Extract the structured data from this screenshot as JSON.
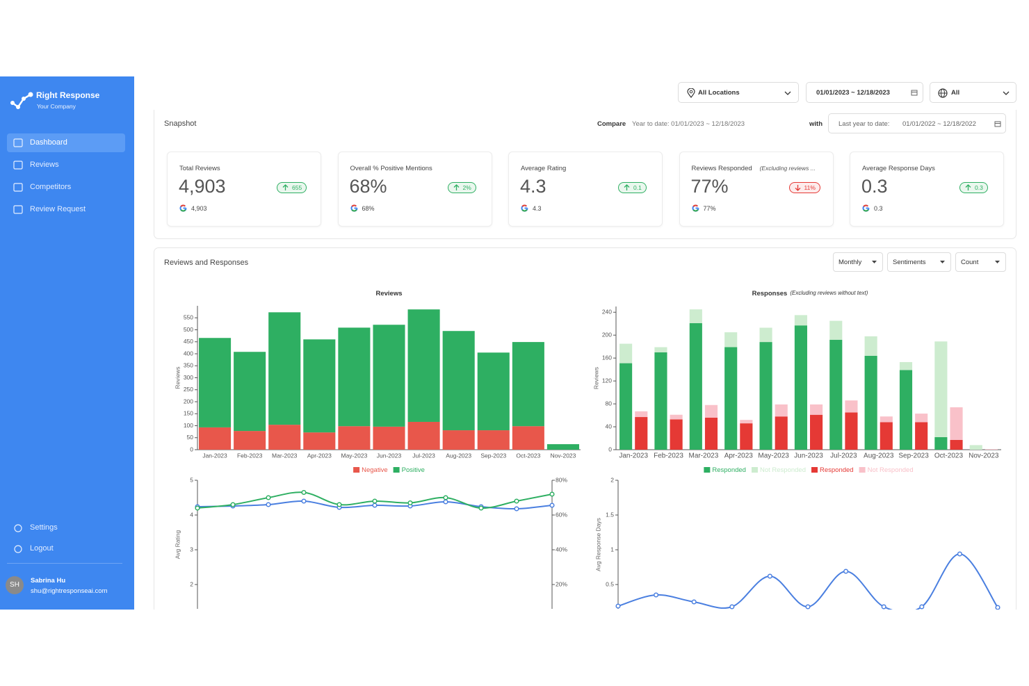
{
  "sidebar": {
    "brand": "Right Response",
    "company": "Your Company",
    "nav": [
      "Dashboard",
      "Reviews",
      "Competitors",
      "Review Request"
    ],
    "active": 0,
    "footer_nav": [
      "Settings",
      "Logout"
    ],
    "user": {
      "initials": "SH",
      "name": "Sabrina Hu",
      "email": "shu@rightresponseai.com"
    }
  },
  "filters": {
    "location": "All Locations",
    "date_range": "01/01/2023 ~ 12/18/2023",
    "source": "All"
  },
  "snapshot": {
    "title": "Snapshot",
    "compare_label": "Compare",
    "compare_value": "Year to date: 01/01/2023 ~ 12/18/2023",
    "with_label": "with",
    "with_prefix": "Last year to date:",
    "with_value": "01/01/2022 ~ 12/18/2022",
    "cards": [
      {
        "label": "Total Reviews",
        "value": "4,903",
        "change": "655",
        "direction": "up",
        "google": "4,903"
      },
      {
        "label": "Overall % Positive Mentions",
        "value": "68%",
        "change": "2%",
        "direction": "up",
        "google": "68%"
      },
      {
        "label": "Average Rating",
        "value": "4.3",
        "change": "0.1",
        "direction": "up",
        "google": "4.3"
      },
      {
        "label": "Reviews Responded",
        "note": "(Excluding reviews ...",
        "value": "77%",
        "change": "11%",
        "direction": "down",
        "google": "77%"
      },
      {
        "label": "Average Response Days",
        "value": "0.3",
        "change": "0.3",
        "direction": "up",
        "google": "0.3"
      }
    ]
  },
  "reviews_panel": {
    "title": "Reviews and Responses",
    "controls": [
      "Monthly",
      "Sentiments",
      "Count"
    ]
  },
  "chart_data": [
    {
      "type": "bar",
      "title": "Reviews",
      "ylabel": "Reviews",
      "categories": [
        "Jan-2023",
        "Feb-2023",
        "Mar-2023",
        "Apr-2023",
        "May-2023",
        "Jun-2023",
        "Jul-2023",
        "Aug-2023",
        "Sep-2023",
        "Oct-2023",
        "Nov-2023"
      ],
      "series": [
        {
          "name": "Negative",
          "color": "#e8574b",
          "stack": 0,
          "values": [
            93,
            78,
            104,
            72,
            98,
            96,
            116,
            81,
            81,
            98,
            0
          ]
        },
        {
          "name": "Positive",
          "color": "#2eaf62",
          "stack": 0,
          "values": [
            373,
            330,
            469,
            388,
            411,
            425,
            469,
            414,
            324,
            351,
            23
          ]
        }
      ],
      "ylim": [
        0,
        600
      ],
      "yticks": [
        0,
        50,
        100,
        150,
        200,
        250,
        300,
        350,
        400,
        450,
        500,
        550
      ]
    },
    {
      "type": "bar",
      "title": "Responses",
      "subtitle": "(Excluding reviews without text)",
      "ylabel": "Reviews",
      "categories": [
        "Jan-2023",
        "Feb-2023",
        "Mar-2023",
        "Apr-2023",
        "May-2023",
        "Jun-2023",
        "Jul-2023",
        "Aug-2023",
        "Sep-2023",
        "Oct-2023",
        "Nov-2023"
      ],
      "series": [
        {
          "name": "Responded",
          "color": "#2eaf62",
          "stack": 0,
          "values": [
            151,
            170,
            221,
            179,
            188,
            217,
            192,
            164,
            139,
            22,
            0
          ]
        },
        {
          "name": "Not Responded",
          "color": "#cdeccf",
          "stack": 0,
          "values": [
            34,
            9,
            24,
            26,
            25,
            18,
            33,
            34,
            14,
            167,
            8
          ]
        },
        {
          "name": "Responded",
          "color": "#e53935",
          "stack": 1,
          "values": [
            57,
            53,
            56,
            46,
            58,
            61,
            65,
            48,
            48,
            17,
            0
          ]
        },
        {
          "name": "Not Responded",
          "color": "#f9c1c9",
          "stack": 1,
          "values": [
            10,
            8,
            22,
            6,
            21,
            18,
            21,
            10,
            15,
            57,
            1
          ]
        }
      ],
      "ylim": [
        0,
        250
      ],
      "yticks": [
        0,
        40,
        80,
        120,
        160,
        200,
        240
      ]
    },
    {
      "type": "line",
      "ylabel": "Avg Rating",
      "series": [
        {
          "color": "#4a7fe0",
          "values": [
            4.24,
            4.26,
            4.3,
            4.4,
            4.22,
            4.28,
            4.26,
            4.38,
            4.24,
            4.18,
            4.28
          ]
        },
        {
          "color": "#2eaf62",
          "axis": "y2",
          "values": [
            64,
            66,
            70,
            73,
            66,
            68,
            67,
            70,
            64,
            68,
            72
          ]
        }
      ],
      "ylim": [
        1.3,
        5
      ],
      "yticks": [
        2,
        3,
        4,
        5
      ],
      "y2lim": [
        6,
        80
      ],
      "y2ticks": [
        {
          "value": 20,
          "label": "20%"
        },
        {
          "value": 40,
          "label": "40%"
        },
        {
          "value": 60,
          "label": "60%"
        },
        {
          "value": 80,
          "label": "80%"
        }
      ]
    },
    {
      "type": "line",
      "ylabel": "Avg Response Days",
      "series": [
        {
          "color": "#4a7fe0",
          "values": [
            0.19,
            0.35,
            0.25,
            0.18,
            0.62,
            0.18,
            0.69,
            0.18,
            0.18,
            0.94,
            0.17
          ]
        }
      ],
      "ylim": [
        0.15,
        2
      ],
      "yticks": [
        0.5,
        1,
        1.5,
        2
      ]
    }
  ]
}
